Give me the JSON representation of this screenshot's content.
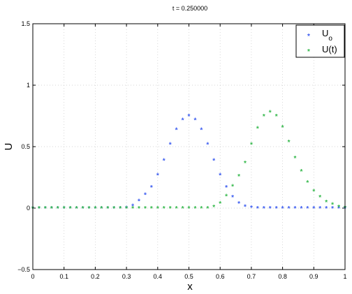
{
  "chart_data": {
    "type": "scatter",
    "title": "t = 0.250000",
    "xlabel": "x",
    "ylabel": "U",
    "xlim": [
      0,
      1
    ],
    "ylim": [
      -0.5,
      1.5
    ],
    "x_ticks": [
      0,
      0.1,
      0.2,
      0.3,
      0.4,
      0.5,
      0.6,
      0.7,
      0.8,
      0.9,
      1
    ],
    "x_tick_labels": [
      "0",
      "0.1",
      "0.2",
      "0.3",
      "0.4",
      "0.5",
      "0.6",
      "0.7",
      "0.8",
      "0.9",
      "1"
    ],
    "y_ticks": [
      -0.5,
      0,
      0.5,
      1,
      1.5
    ],
    "y_tick_labels": [
      "−0.5",
      "0",
      "0.5",
      "1",
      "1.5"
    ],
    "grid": true,
    "legend_position": "top-right",
    "marker": "*",
    "series": [
      {
        "name": "U_o",
        "label_main": "U",
        "label_sub": "o",
        "color": "#3a5bf0",
        "x": [
          0.0,
          0.02,
          0.04,
          0.06,
          0.08,
          0.1,
          0.12,
          0.14,
          0.16,
          0.18,
          0.2,
          0.22,
          0.24,
          0.26,
          0.28,
          0.3,
          0.32,
          0.34,
          0.36,
          0.38,
          0.4,
          0.42,
          0.44,
          0.46,
          0.48,
          0.5,
          0.52,
          0.54,
          0.56,
          0.58,
          0.6,
          0.62,
          0.64,
          0.66,
          0.68,
          0.7,
          0.72,
          0.74,
          0.76,
          0.78,
          0.8,
          0.82,
          0.84,
          0.86,
          0.88,
          0.9,
          0.92,
          0.94,
          0.96,
          0.98,
          1.0
        ],
        "y": [
          0,
          0,
          0,
          0,
          0,
          0,
          0,
          0,
          0,
          0,
          0,
          0,
          0,
          0,
          0,
          0.002,
          0.02,
          0.06,
          0.11,
          0.17,
          0.27,
          0.39,
          0.52,
          0.64,
          0.72,
          0.75,
          0.72,
          0.64,
          0.52,
          0.39,
          0.27,
          0.17,
          0.09,
          0.04,
          0.015,
          0.005,
          0,
          0,
          0,
          0,
          0,
          0,
          0,
          0,
          0,
          0,
          0,
          0,
          0,
          0,
          0
        ]
      },
      {
        "name": "U(t)",
        "label_main": "U(t)",
        "label_sub": "",
        "color": "#33b84a",
        "x": [
          0.0,
          0.02,
          0.04,
          0.06,
          0.08,
          0.1,
          0.12,
          0.14,
          0.16,
          0.18,
          0.2,
          0.22,
          0.24,
          0.26,
          0.28,
          0.3,
          0.32,
          0.34,
          0.36,
          0.38,
          0.4,
          0.42,
          0.44,
          0.46,
          0.48,
          0.5,
          0.52,
          0.54,
          0.56,
          0.58,
          0.6,
          0.62,
          0.64,
          0.66,
          0.68,
          0.7,
          0.72,
          0.74,
          0.76,
          0.78,
          0.8,
          0.82,
          0.84,
          0.86,
          0.88,
          0.9,
          0.92,
          0.94,
          0.96,
          0.98,
          1.0
        ],
        "y": [
          0,
          0,
          0,
          0,
          0,
          0,
          0,
          0,
          0,
          0,
          0,
          0,
          0,
          0,
          0,
          0,
          0,
          0,
          0,
          0,
          0,
          0,
          0,
          0,
          0,
          0,
          0,
          0,
          0,
          0.01,
          0.04,
          0.1,
          0.18,
          0.26,
          0.37,
          0.52,
          0.65,
          0.75,
          0.78,
          0.75,
          0.66,
          0.54,
          0.41,
          0.3,
          0.21,
          0.14,
          0.09,
          0.05,
          0.03,
          0.01,
          0.005
        ]
      }
    ]
  }
}
